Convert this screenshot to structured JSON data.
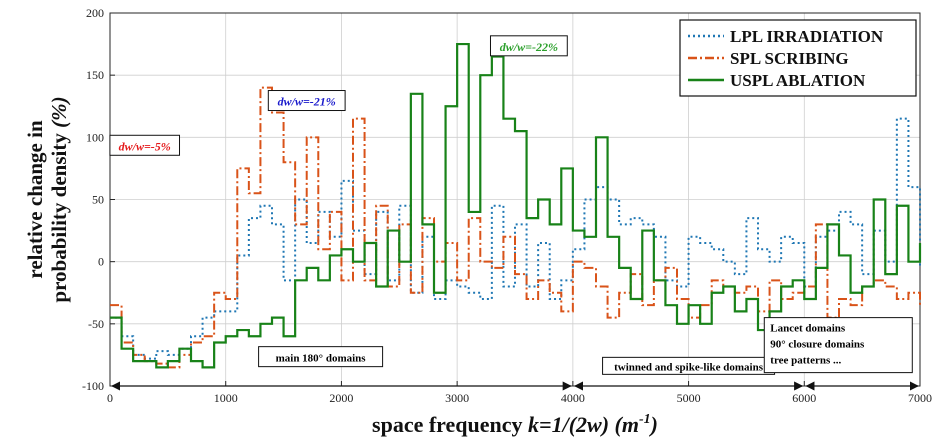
{
  "chart_data": {
    "type": "line",
    "step": true,
    "xlabel": "space frequency",
    "xlabel_italic": "k=1/(2w) (m",
    "xlabel_sup": "-1",
    "xlabel_close": ")",
    "ylabel_line1": "relative change in",
    "ylabel_line2": "probability density",
    "ylabel_unit": "(%)",
    "xlim": [
      0,
      7000
    ],
    "ylim": [
      -100,
      200
    ],
    "xticks": [
      0,
      1000,
      2000,
      3000,
      4000,
      5000,
      6000,
      7000
    ],
    "yticks": [
      -100,
      -50,
      0,
      50,
      100,
      150,
      200
    ],
    "grid": true,
    "legend_position": "top-right",
    "series": [
      {
        "name": "LPL IRRADIATION",
        "color": "#1f77b4",
        "dash": "2,3",
        "x": [
          0,
          100,
          200,
          300,
          400,
          500,
          600,
          700,
          800,
          900,
          1000,
          1100,
          1200,
          1300,
          1400,
          1500,
          1600,
          1700,
          1800,
          1900,
          2000,
          2100,
          2200,
          2300,
          2400,
          2500,
          2600,
          2700,
          2800,
          2900,
          3000,
          3100,
          3200,
          3300,
          3400,
          3500,
          3600,
          3700,
          3800,
          3900,
          4000,
          4100,
          4200,
          4300,
          4400,
          4500,
          4600,
          4700,
          4800,
          4900,
          5000,
          5100,
          5200,
          5300,
          5400,
          5500,
          5600,
          5700,
          5800,
          5900,
          6000,
          6100,
          6200,
          6300,
          6400,
          6500,
          6600,
          6700,
          6800,
          6900,
          7000
        ],
        "values": [
          -45,
          -60,
          -75,
          -78,
          -72,
          -75,
          -70,
          -60,
          -45,
          -40,
          -40,
          5,
          35,
          45,
          30,
          -15,
          50,
          15,
          40,
          20,
          65,
          25,
          -10,
          40,
          -15,
          45,
          -25,
          20,
          -30,
          -15,
          -20,
          -25,
          -30,
          45,
          -20,
          30,
          -20,
          15,
          -30,
          -15,
          10,
          50,
          60,
          50,
          30,
          35,
          30,
          20,
          -15,
          -20,
          20,
          15,
          10,
          0,
          -10,
          35,
          10,
          0,
          20,
          15,
          -20,
          20,
          25,
          40,
          30,
          -10,
          25,
          0,
          115,
          60,
          -5
        ]
      },
      {
        "name": "SPL SCRIBING",
        "color": "#d95319",
        "dash": "9,3,2,3",
        "x": [
          0,
          100,
          200,
          300,
          400,
          500,
          600,
          700,
          800,
          900,
          1000,
          1100,
          1200,
          1300,
          1400,
          1500,
          1600,
          1700,
          1800,
          1900,
          2000,
          2100,
          2200,
          2300,
          2400,
          2500,
          2600,
          2700,
          2800,
          2900,
          3000,
          3100,
          3200,
          3300,
          3400,
          3500,
          3600,
          3700,
          3800,
          3900,
          4000,
          4100,
          4200,
          4300,
          4400,
          4500,
          4600,
          4700,
          4800,
          4900,
          5000,
          5100,
          5200,
          5300,
          5400,
          5500,
          5600,
          5700,
          5800,
          5900,
          6000,
          6100,
          6200,
          6300,
          6400,
          6500,
          6600,
          6700,
          6800,
          6900,
          7000
        ],
        "values": [
          -35,
          -65,
          -75,
          -80,
          -82,
          -85,
          -75,
          -65,
          -60,
          -25,
          -30,
          75,
          55,
          140,
          120,
          80,
          30,
          100,
          10,
          40,
          -15,
          115,
          -15,
          45,
          -20,
          30,
          -25,
          35,
          0,
          15,
          -15,
          35,
          0,
          -5,
          20,
          -10,
          -30,
          -15,
          -25,
          -40,
          0,
          -5,
          -20,
          -45,
          -25,
          -10,
          -35,
          -15,
          -5,
          -30,
          -45,
          -35,
          -15,
          -20,
          -25,
          -20,
          -40,
          -15,
          -30,
          -25,
          -20,
          30,
          -45,
          -30,
          -35,
          -20,
          -15,
          -20,
          -30,
          -25,
          -35
        ]
      },
      {
        "name": "USPL ABLATION",
        "color": "#188218",
        "dash": "",
        "x": [
          0,
          100,
          200,
          300,
          400,
          500,
          600,
          700,
          800,
          900,
          1000,
          1100,
          1200,
          1300,
          1400,
          1500,
          1600,
          1700,
          1800,
          1900,
          2000,
          2100,
          2200,
          2300,
          2400,
          2500,
          2600,
          2700,
          2800,
          2900,
          3000,
          3100,
          3200,
          3300,
          3400,
          3500,
          3600,
          3700,
          3800,
          3900,
          4000,
          4100,
          4200,
          4300,
          4400,
          4500,
          4600,
          4700,
          4800,
          4900,
          5000,
          5100,
          5200,
          5300,
          5400,
          5500,
          5600,
          5700,
          5800,
          5900,
          6000,
          6100,
          6200,
          6300,
          6400,
          6500,
          6600,
          6700,
          6800,
          6900,
          7000
        ],
        "values": [
          -45,
          -70,
          -80,
          -80,
          -85,
          -80,
          -70,
          -80,
          -85,
          -65,
          -60,
          -55,
          -60,
          -50,
          -45,
          -60,
          -15,
          -5,
          -15,
          5,
          10,
          0,
          15,
          -20,
          25,
          0,
          135,
          30,
          -25,
          125,
          175,
          40,
          150,
          165,
          115,
          105,
          35,
          50,
          30,
          75,
          25,
          20,
          100,
          20,
          -5,
          -30,
          25,
          -15,
          -35,
          -50,
          -35,
          -50,
          -25,
          -20,
          -40,
          -30,
          -55,
          -40,
          -20,
          -15,
          -30,
          -5,
          30,
          5,
          -25,
          -20,
          50,
          -10,
          45,
          0,
          15
        ]
      }
    ],
    "annotations": [
      {
        "text": "dw/w=-5%",
        "x": 300,
        "y": 92,
        "color": "#e41a1c"
      },
      {
        "text": "dw/w=-21%",
        "x": 1700,
        "y": 128,
        "color": "#1a1acc"
      },
      {
        "text": "dw/w=-22%",
        "x": 3620,
        "y": 172,
        "color": "#2ca02c"
      }
    ],
    "regions": [
      {
        "text": "main 180° domains",
        "start": 0,
        "end": 4000,
        "label_x": 1820,
        "label_y": -78
      },
      {
        "text": "twinned and spike-like domains",
        "start": 4000,
        "end": 6000,
        "label_x": 5000,
        "label_y": -85
      },
      {
        "text": "Lancet domains",
        "text2": "90° closure domains",
        "text3": "tree patterns ...",
        "start": 6000,
        "end": 7000
      }
    ]
  }
}
